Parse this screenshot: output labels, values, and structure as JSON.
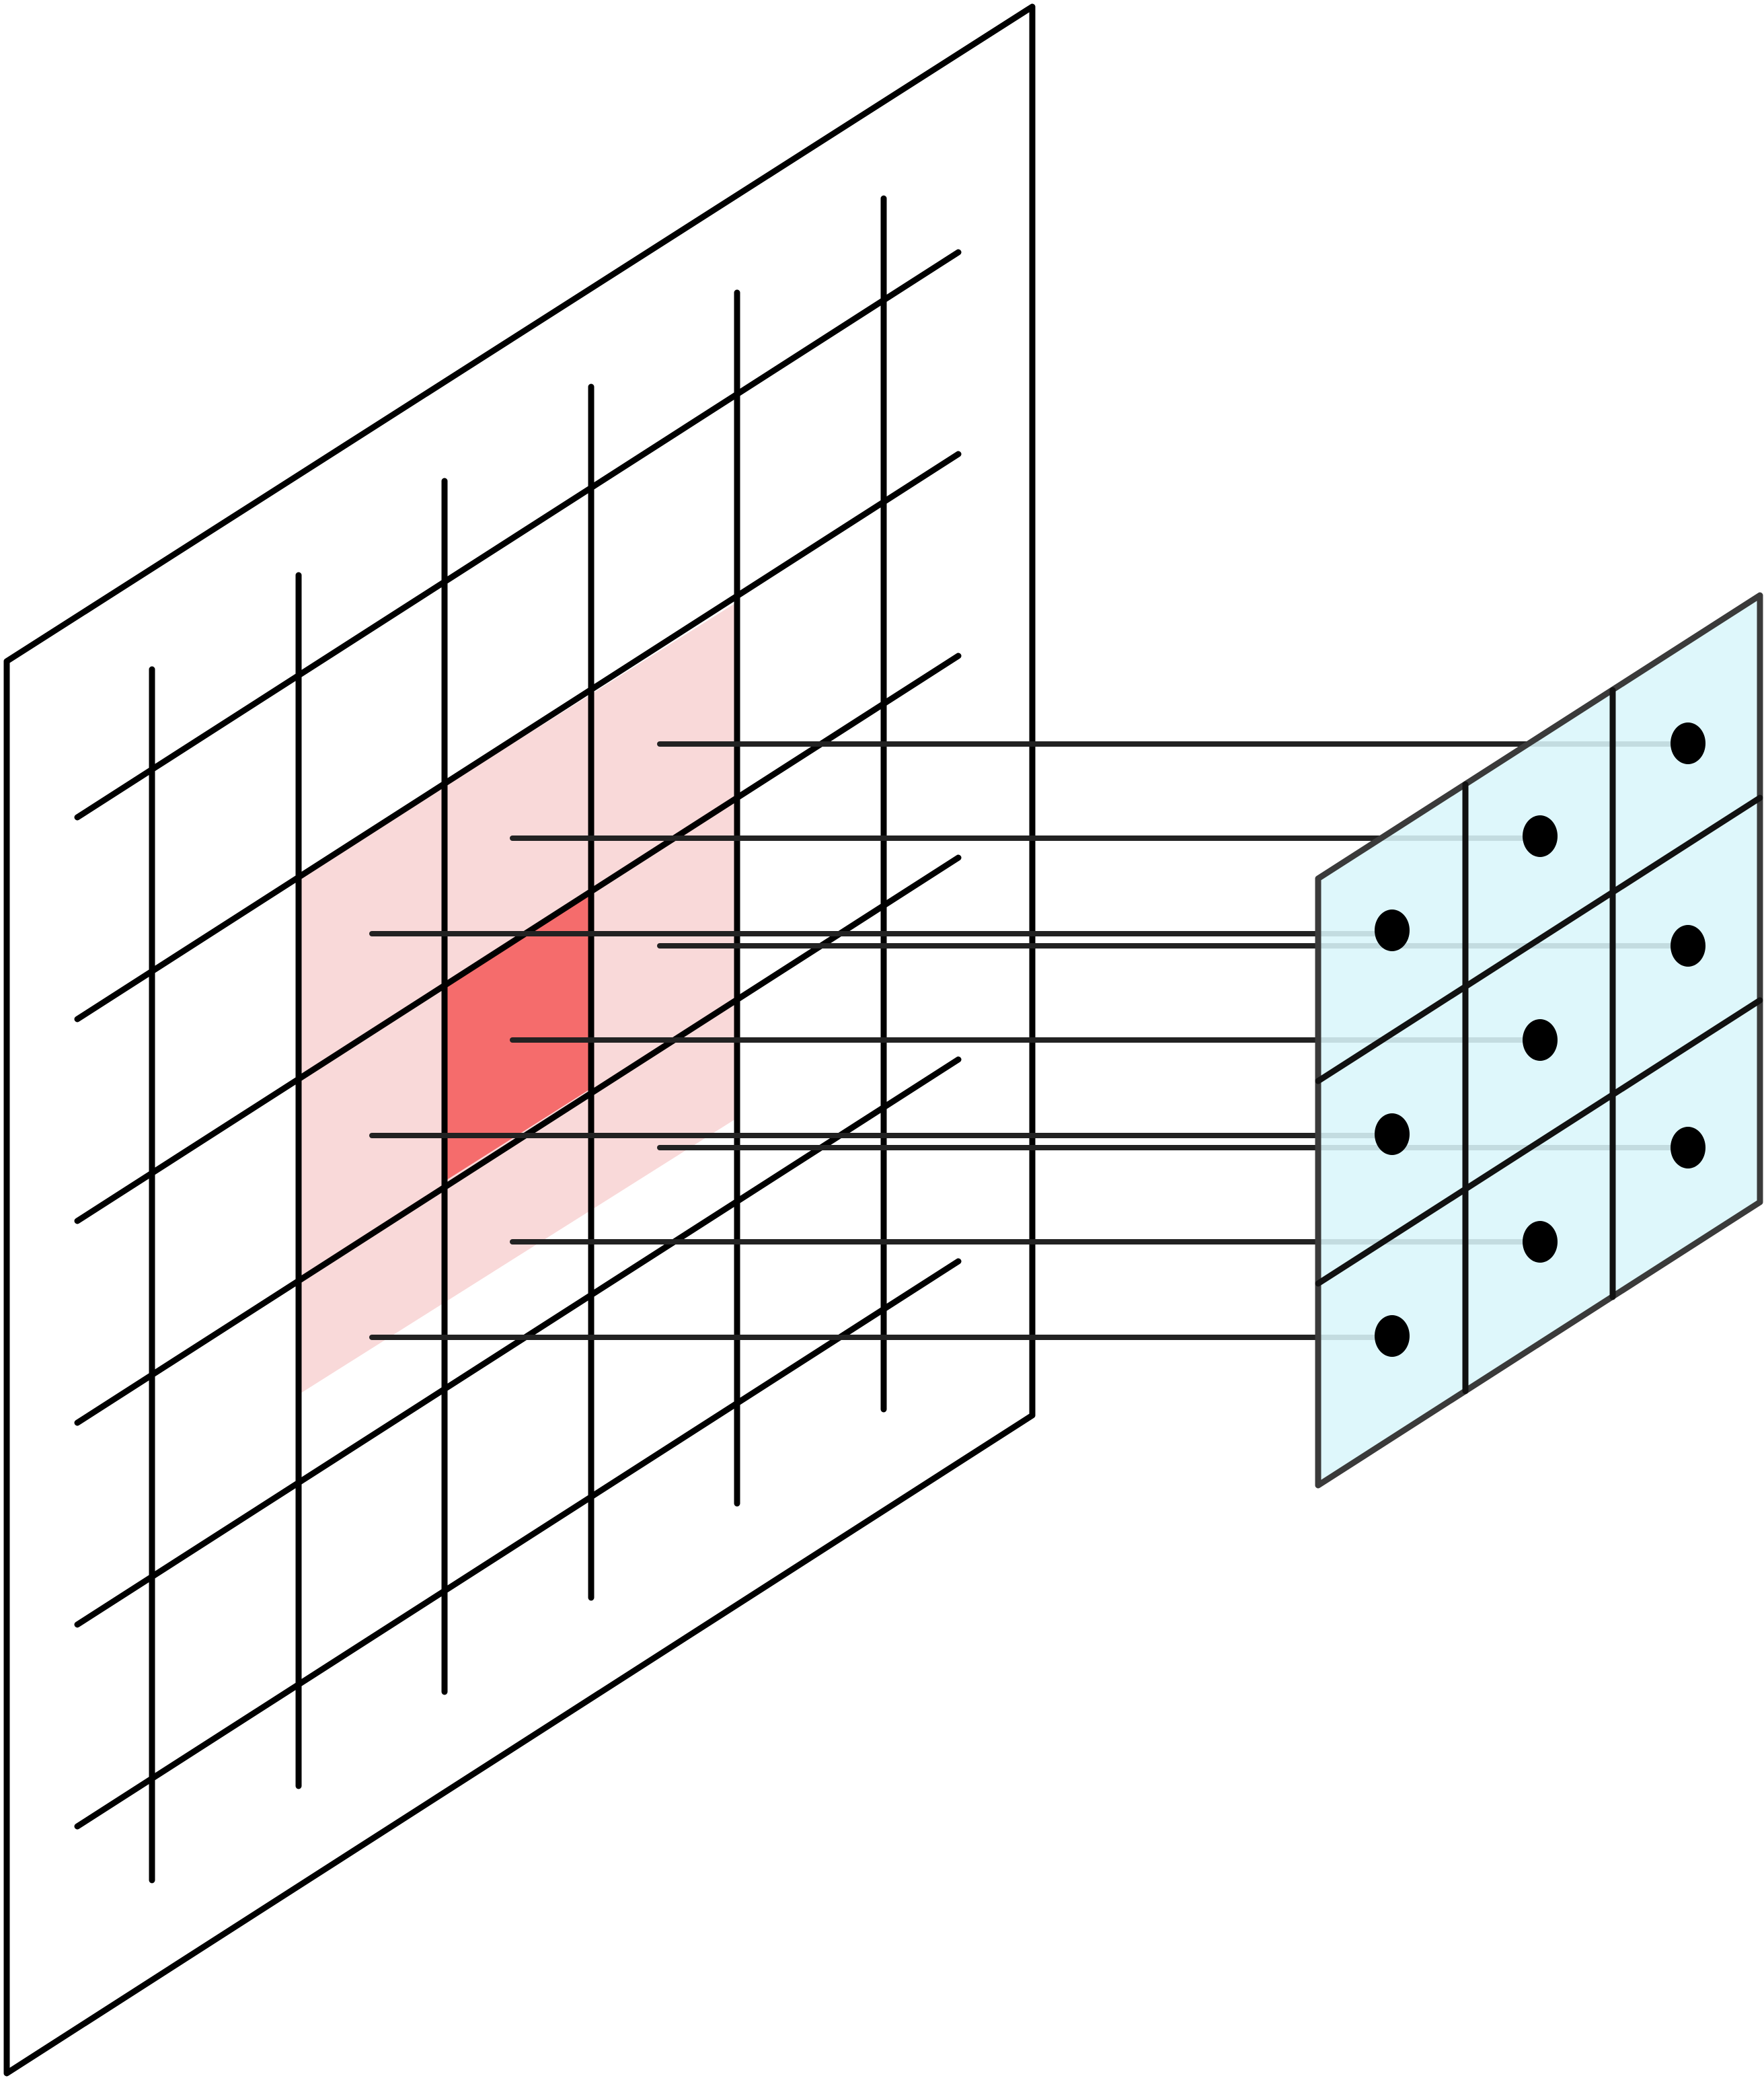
{
  "diagram": {
    "kind": "convolution-receptive-field-illustration",
    "input_grid": {
      "vertical_lines": 6,
      "slanted_lines": 8,
      "receptive_field_size": "3x3",
      "center_cell_highlighted": true
    },
    "output_grid": {
      "rows": 3,
      "cols": 3,
      "cell_markers": 9
    },
    "connections": 9,
    "colors": {
      "stroke": "#000000",
      "receptive_field_fill": "#f9d9d9",
      "center_cell_fill": "#f56c6c",
      "output_fill": "#d9f6fa",
      "output_stroke": "#3a3a3a",
      "marker": "#000000"
    }
  }
}
